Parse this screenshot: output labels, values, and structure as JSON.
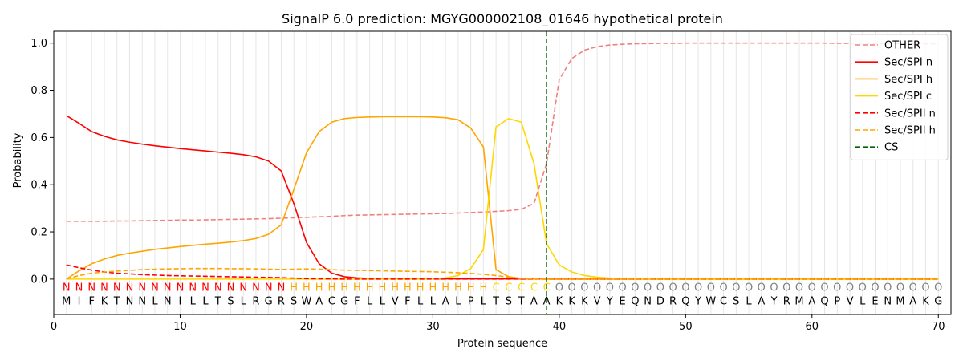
{
  "chart_data": {
    "type": "line",
    "title": "SignalP 6.0 prediction: MGYG000002108_01646 hypothetical protein",
    "xlabel": "Protein sequence",
    "ylabel": "Probability",
    "xlim": [
      0,
      71
    ],
    "ylim": [
      -0.15,
      1.05
    ],
    "x_ticks": [
      0,
      10,
      20,
      30,
      40,
      50,
      60,
      70
    ],
    "y_ticks": [
      0.0,
      0.2,
      0.4,
      0.6,
      0.8,
      1.0
    ],
    "grid": "vertical lines at each residue position",
    "legend_position": "top-right",
    "positions": [
      1,
      2,
      3,
      4,
      5,
      6,
      7,
      8,
      9,
      10,
      11,
      12,
      13,
      14,
      15,
      16,
      17,
      18,
      19,
      20,
      21,
      22,
      23,
      24,
      25,
      26,
      27,
      28,
      29,
      30,
      31,
      32,
      33,
      34,
      35,
      36,
      37,
      38,
      39,
      40,
      41,
      42,
      43,
      44,
      45,
      46,
      47,
      48,
      49,
      50,
      51,
      52,
      53,
      54,
      55,
      56,
      57,
      58,
      59,
      60,
      61,
      62,
      63,
      64,
      65,
      66,
      67,
      68,
      69,
      70
    ],
    "sequence": [
      "M",
      "I",
      "F",
      "K",
      "T",
      "N",
      "N",
      "L",
      "N",
      "I",
      "L",
      "L",
      "T",
      "S",
      "L",
      "R",
      "G",
      "R",
      "S",
      "W",
      "A",
      "C",
      "G",
      "F",
      "L",
      "L",
      "V",
      "F",
      "L",
      "L",
      "A",
      "L",
      "P",
      "L",
      "T",
      "S",
      "T",
      "A",
      "A",
      "K",
      "K",
      "K",
      "V",
      "Y",
      "E",
      "Q",
      "N",
      "D",
      "R",
      "Q",
      "Y",
      "W",
      "C",
      "S",
      "L",
      "A",
      "Y",
      "R",
      "M",
      "A",
      "Q",
      "P",
      "V",
      "L",
      "E",
      "N",
      "M",
      "A",
      "K",
      "G"
    ],
    "region_labels": [
      "N",
      "N",
      "N",
      "N",
      "N",
      "N",
      "N",
      "N",
      "N",
      "N",
      "N",
      "N",
      "N",
      "N",
      "N",
      "N",
      "N",
      "N",
      "H",
      "H",
      "H",
      "H",
      "H",
      "H",
      "H",
      "H",
      "H",
      "H",
      "H",
      "H",
      "H",
      "H",
      "H",
      "H",
      "C",
      "C",
      "C",
      "C",
      "C",
      "O",
      "O",
      "O",
      "O",
      "O",
      "O",
      "O",
      "O",
      "O",
      "O",
      "O",
      "O",
      "O",
      "O",
      "O",
      "O",
      "O",
      "O",
      "O",
      "O",
      "O",
      "O",
      "O",
      "O",
      "O",
      "O",
      "O",
      "O",
      "O",
      "O",
      "O"
    ],
    "region_colors": {
      "N": "#ff0000",
      "H": "#ffa500",
      "C": "#ffd700",
      "O": "#808080"
    },
    "cleavage_site": 39,
    "series": [
      {
        "name": "OTHER",
        "color": "#f08080",
        "dash": "dashed",
        "values": [
          0.245,
          0.245,
          0.245,
          0.245,
          0.246,
          0.246,
          0.247,
          0.248,
          0.249,
          0.25,
          0.25,
          0.251,
          0.252,
          0.253,
          0.254,
          0.255,
          0.256,
          0.258,
          0.26,
          0.262,
          0.264,
          0.266,
          0.269,
          0.271,
          0.272,
          0.273,
          0.274,
          0.275,
          0.276,
          0.277,
          0.278,
          0.28,
          0.282,
          0.284,
          0.287,
          0.29,
          0.296,
          0.32,
          0.49,
          0.845,
          0.935,
          0.97,
          0.985,
          0.992,
          0.995,
          0.997,
          0.998,
          0.999,
          0.999,
          1.0,
          1.0,
          1.0,
          1.0,
          1.0,
          1.0,
          1.0,
          1.0,
          1.0,
          1.0,
          1.0,
          1.0,
          0.999,
          0.999,
          0.999,
          0.998,
          0.998,
          0.998,
          0.997,
          0.997,
          0.997
        ]
      },
      {
        "name": "Sec/SPI n",
        "color": "#ff0000",
        "dash": "solid",
        "values": [
          0.693,
          0.66,
          0.625,
          0.605,
          0.59,
          0.58,
          0.572,
          0.565,
          0.559,
          0.553,
          0.548,
          0.543,
          0.538,
          0.533,
          0.527,
          0.518,
          0.5,
          0.458,
          0.32,
          0.155,
          0.065,
          0.025,
          0.01,
          0.005,
          0.003,
          0.002,
          0.001,
          0.001,
          0.001,
          0.001,
          0.001,
          0.001,
          0.001,
          0.001,
          0.001,
          0.001,
          0.001,
          0.001,
          0.0,
          0.0,
          0.0,
          0.0,
          0.0,
          0.0,
          0.0,
          0.0,
          0.0,
          0.0,
          0.0,
          0.0,
          0.0,
          0.0,
          0.0,
          0.0,
          0.0,
          0.0,
          0.0,
          0.0,
          0.0,
          0.0,
          0.0,
          0.0,
          0.0,
          0.0,
          0.0,
          0.0,
          0.0,
          0.0,
          0.0,
          0.0
        ]
      },
      {
        "name": "Sec/SPI h",
        "color": "#ffa500",
        "dash": "solid",
        "values": [
          0.0,
          0.035,
          0.065,
          0.085,
          0.1,
          0.11,
          0.118,
          0.126,
          0.132,
          0.138,
          0.143,
          0.148,
          0.152,
          0.157,
          0.163,
          0.172,
          0.19,
          0.23,
          0.38,
          0.535,
          0.625,
          0.665,
          0.68,
          0.685,
          0.687,
          0.688,
          0.688,
          0.688,
          0.688,
          0.687,
          0.684,
          0.675,
          0.64,
          0.56,
          0.04,
          0.01,
          0.002,
          0.0,
          0.0,
          0.0,
          0.0,
          0.0,
          0.0,
          0.0,
          0.0,
          0.0,
          0.0,
          0.0,
          0.0,
          0.0,
          0.0,
          0.0,
          0.0,
          0.0,
          0.0,
          0.0,
          0.0,
          0.0,
          0.0,
          0.0,
          0.0,
          0.0,
          0.0,
          0.0,
          0.0,
          0.0,
          0.0,
          0.0,
          0.0,
          0.0
        ]
      },
      {
        "name": "Sec/SPI c",
        "color": "#ffd700",
        "dash": "solid",
        "values": [
          0.0,
          0.0,
          0.0,
          0.0,
          0.0,
          0.0,
          0.0,
          0.0,
          0.0,
          0.0,
          0.0,
          0.0,
          0.0,
          0.0,
          0.0,
          0.0,
          0.0,
          0.0,
          0.0,
          0.0,
          0.0,
          0.0,
          0.0,
          0.0,
          0.0,
          0.0,
          0.0,
          0.0,
          0.0,
          0.001,
          0.005,
          0.015,
          0.045,
          0.125,
          0.645,
          0.68,
          0.665,
          0.49,
          0.15,
          0.06,
          0.03,
          0.015,
          0.008,
          0.004,
          0.002,
          0.001,
          0.001,
          0.0,
          0.0,
          0.0,
          0.0,
          0.0,
          0.0,
          0.0,
          0.0,
          0.0,
          0.0,
          0.0,
          0.0,
          0.0,
          0.0,
          0.0,
          0.0,
          0.0,
          0.0,
          0.0,
          0.0,
          0.0,
          0.0,
          0.0
        ]
      },
      {
        "name": "Sec/SPII n",
        "color": "#ff0000",
        "dash": "dashed",
        "values": [
          0.06,
          0.048,
          0.038,
          0.03,
          0.025,
          0.022,
          0.019,
          0.017,
          0.015,
          0.014,
          0.013,
          0.012,
          0.011,
          0.01,
          0.009,
          0.008,
          0.007,
          0.006,
          0.004,
          0.002,
          0.001,
          0.001,
          0.0,
          0.0,
          0.0,
          0.0,
          0.0,
          0.0,
          0.0,
          0.0,
          0.0,
          0.0,
          0.0,
          0.0,
          0.0,
          0.0,
          0.0,
          0.0,
          0.0,
          0.0,
          0.0,
          0.0,
          0.0,
          0.0,
          0.0,
          0.0,
          0.0,
          0.0,
          0.0,
          0.0,
          0.0,
          0.0,
          0.0,
          0.0,
          0.0,
          0.0,
          0.0,
          0.0,
          0.0,
          0.0,
          0.0,
          0.0,
          0.0,
          0.0,
          0.0,
          0.0,
          0.0,
          0.0,
          0.0,
          0.0
        ]
      },
      {
        "name": "Sec/SPII h",
        "color": "#ffa500",
        "dash": "dashed",
        "values": [
          0.0,
          0.015,
          0.025,
          0.03,
          0.034,
          0.037,
          0.04,
          0.042,
          0.043,
          0.044,
          0.045,
          0.045,
          0.045,
          0.044,
          0.044,
          0.043,
          0.042,
          0.041,
          0.042,
          0.043,
          0.042,
          0.04,
          0.038,
          0.037,
          0.036,
          0.035,
          0.034,
          0.033,
          0.032,
          0.031,
          0.029,
          0.027,
          0.024,
          0.02,
          0.015,
          0.008,
          0.003,
          0.001,
          0.0,
          0.0,
          0.0,
          0.0,
          0.0,
          0.0,
          0.0,
          0.0,
          0.0,
          0.0,
          0.0,
          0.0,
          0.0,
          0.0,
          0.0,
          0.0,
          0.0,
          0.0,
          0.0,
          0.0,
          0.0,
          0.0,
          0.0,
          0.0,
          0.0,
          0.0,
          0.0,
          0.0,
          0.0,
          0.0,
          0.0,
          0.0
        ]
      }
    ],
    "cs_series": {
      "name": "CS",
      "color": "#006400",
      "dash": "dashed"
    }
  }
}
